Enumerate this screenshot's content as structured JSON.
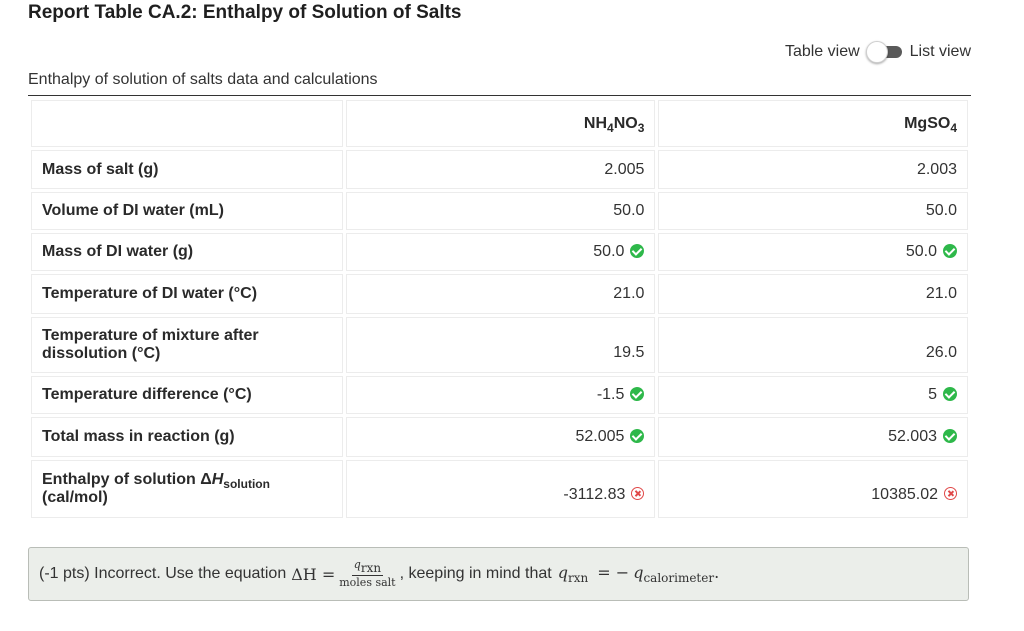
{
  "title": "Report Table CA.2: Enthalpy of Solution of Salts",
  "toggle": {
    "left_label": "Table view",
    "right_label": "List view"
  },
  "caption": "Enthalpy of solution of salts data and calculations",
  "columns": [
    {
      "base": "NH",
      "sub1": "4",
      "mid": "NO",
      "sub2": "3"
    },
    {
      "base": "MgSO",
      "sub1": "4",
      "mid": "",
      "sub2": ""
    }
  ],
  "rows": [
    {
      "label": "Mass of salt (g)",
      "v1": "2.005",
      "v2": "2.003"
    },
    {
      "label": "Volume of DI water (mL)",
      "v1": "50.0",
      "v2": "50.0"
    },
    {
      "label": "Mass of DI water (g)",
      "v1": "50.0",
      "v2": "50.0"
    },
    {
      "label": "Temperature of DI water (°C)",
      "v1": "21.0",
      "v2": "21.0"
    },
    {
      "label": "Temperature of mixture after dissolution (°C)",
      "v1": "19.5",
      "v2": "26.0"
    },
    {
      "label": "Temperature difference (°C)",
      "v1": "-1.5",
      "v2": "5"
    },
    {
      "label": "Total mass in reaction (g)",
      "v1": "52.005",
      "v2": "52.003"
    },
    {
      "label_pre": "Enthalpy of solution Δ",
      "label_H": "H",
      "label_sub": "solution",
      "label_unit": "(cal/mol)",
      "v1": "-3112.83",
      "v2": "10385.02"
    }
  ],
  "feedback": {
    "pre": "(-1 pts) Incorrect. Use the equation",
    "lhs": "ΔH =",
    "num": "q",
    "num_sub": "rxn",
    "den": "moles salt",
    "mid": ", keeping in mind that",
    "q": "q",
    "q_sub": "rxn",
    "eq": "= −",
    "q2": "q",
    "q2_sub": "calorimeter",
    "end": "."
  },
  "status_colors": {
    "correct": "#2eb84a",
    "incorrect": "#e04848"
  }
}
